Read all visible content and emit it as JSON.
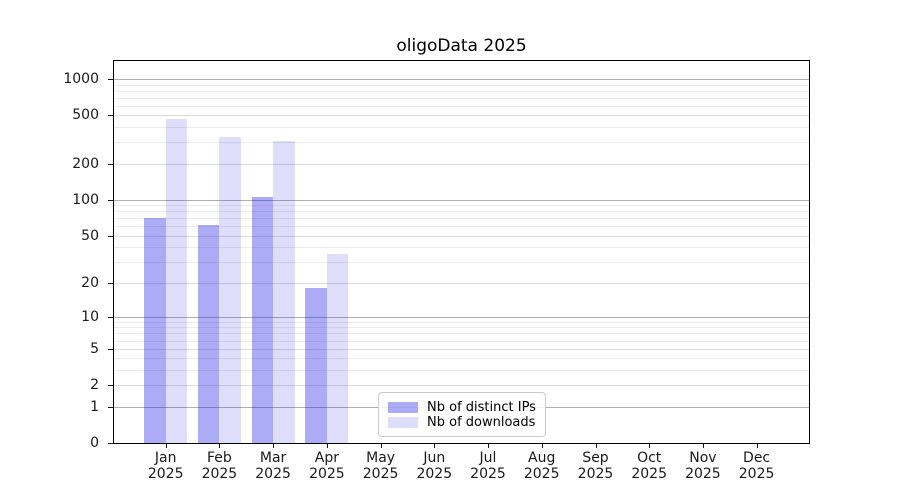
{
  "chart_data": {
    "type": "bar",
    "title": "oligoData 2025",
    "categories": [
      "Jan",
      "Feb",
      "Mar",
      "Apr",
      "May",
      "Jun",
      "Jul",
      "Aug",
      "Sep",
      "Oct",
      "Nov",
      "Dec"
    ],
    "year_label": "2025",
    "series": [
      {
        "name": "Nb of distinct IPs",
        "color": "rgba(30,30,230,0.37)",
        "values": [
          70,
          62,
          105,
          18,
          0,
          0,
          0,
          0,
          0,
          0,
          0,
          0
        ]
      },
      {
        "name": "Nb of downloads",
        "color": "rgba(30,30,230,0.145)",
        "values": [
          470,
          335,
          310,
          35,
          0,
          0,
          0,
          0,
          0,
          0,
          0,
          0
        ]
      }
    ],
    "y_scale": "log1p",
    "y_ticks": [
      0,
      1,
      2,
      5,
      10,
      20,
      50,
      100,
      200,
      500,
      1000
    ],
    "y_decade_ticks": [
      1,
      10,
      100,
      1000
    ],
    "y_minor_gridlines": [
      3,
      4,
      6,
      7,
      8,
      9,
      30,
      40,
      60,
      70,
      80,
      90,
      300,
      400,
      600,
      700,
      800,
      900
    ],
    "ylim": [
      0,
      1400
    ],
    "grid": "on",
    "legend_position": "lower center-left inside plot"
  }
}
